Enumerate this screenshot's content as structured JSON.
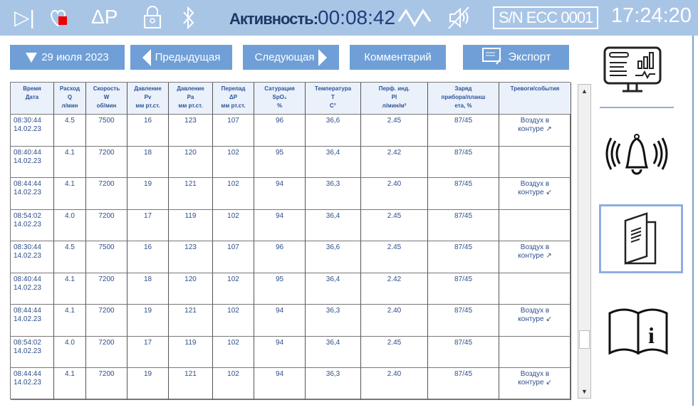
{
  "topbar": {
    "activity_label": "Активность:",
    "activity_time": "00:08:42",
    "serial": "S/N ECC 0001",
    "clock": "17:24:20",
    "delta_p": "ΔP"
  },
  "toolbar": {
    "date": "29 июля  2023",
    "prev": "Предыдущая",
    "next": "Следующая",
    "comment": "Комментарий",
    "export": "Экспорт"
  },
  "table": {
    "headers": [
      "Время\nДата",
      "Расход\nQ\nл/мин",
      "Скорость\nW\nоб/мин",
      "Давление\nPv\nмм рт.ст.",
      "Давление\nPa\nмм рт.ст.",
      "Перепад\nΔP\nмм рт.ст.",
      "Сатурация\nSpO₂\n%",
      "Температура\nT\nC°",
      "Перф. инд.\nPI\nл/мин/м²",
      "Заряд\nприбора/планш\nета, %",
      "Тревоги/события"
    ],
    "rows": [
      [
        "08:30:44\n14.02.23",
        "4.5",
        "7500",
        "16",
        "123",
        "107",
        "96",
        "36,6",
        "2.45",
        "87/45",
        "Воздух в\nконтуре ↗"
      ],
      [
        "08:40:44\n14.02.23",
        "4.1",
        "7200",
        "18",
        "120",
        "102",
        "95",
        "36,4",
        "2.42",
        "87/45",
        ""
      ],
      [
        "08:44:44\n14.02.23",
        "4.1",
        "7200",
        "19",
        "121",
        "102",
        "94",
        "36,3",
        "2.40",
        "87/45",
        "Воздух в\nконтуре ↙"
      ],
      [
        "08:54:02\n14.02.23",
        "4.0",
        "7200",
        "17",
        "119",
        "102",
        "94",
        "36,4",
        "2.45",
        "87/45",
        ""
      ],
      [
        "08:30:44\n14.02.23",
        "4.5",
        "7500",
        "16",
        "123",
        "107",
        "96",
        "36,6",
        "2.45",
        "87/45",
        "Воздух в\nконтуре ↗"
      ],
      [
        "08:40:44\n14.02.23",
        "4.1",
        "7200",
        "18",
        "120",
        "102",
        "95",
        "36,4",
        "2.42",
        "87/45",
        ""
      ],
      [
        "08:44:44\n14.02.23",
        "4.1",
        "7200",
        "19",
        "121",
        "102",
        "94",
        "36,3",
        "2.40",
        "87/45",
        "Воздух в\nконтуре ↙"
      ],
      [
        "08:54:02\n14.02.23",
        "4.0",
        "7200",
        "17",
        "119",
        "102",
        "94",
        "36,4",
        "2.45",
        "87/45",
        ""
      ],
      [
        "08:44:44\n14.02.23",
        "4.1",
        "7200",
        "19",
        "121",
        "102",
        "94",
        "36,3",
        "2.40",
        "87/45",
        "Воздух в\nконтуре ↙"
      ]
    ]
  },
  "scrollbar": {
    "up": "▲",
    "down": "▼"
  }
}
